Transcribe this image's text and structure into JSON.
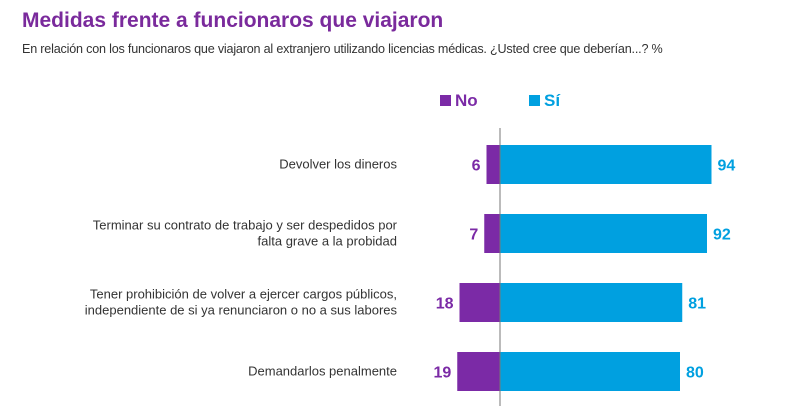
{
  "header": {
    "title": "Medidas frente a funcionaros que viajaron",
    "subtitle": "En relación con los funcionaros que viajaron al extranjero utilizando licencias médicas. ¿Usted cree que deberían...? %"
  },
  "colors": {
    "title": "#7a2a9c",
    "no": "#7b2aa6",
    "si": "#00a0e0",
    "axis": "#777777"
  },
  "chart_data": {
    "type": "bar",
    "orientation": "horizontal-diverging",
    "title": "Medidas frente a funcionaros que viajaron",
    "subtitle": "En relación con los funcionaros que viajaron al extranjero utilizando licencias médicas. ¿Usted cree que deberían...? %",
    "legend": [
      "No",
      "Sí"
    ],
    "legend_position": "top",
    "categories": [
      [
        "Devolver los dineros"
      ],
      [
        "Terminar su contrato de trabajo y ser despedidos por",
        "falta grave a la probidad"
      ],
      [
        "Tener prohibición de volver a ejercer cargos públicos,",
        "independiente de si ya renunciaron o no a sus labores"
      ],
      [
        "Demandarlos penalmente"
      ]
    ],
    "series": [
      {
        "name": "No",
        "values": [
          6,
          7,
          18,
          19
        ]
      },
      {
        "name": "Sí",
        "values": [
          94,
          92,
          81,
          80
        ]
      }
    ],
    "units": "%",
    "grid": false
  }
}
